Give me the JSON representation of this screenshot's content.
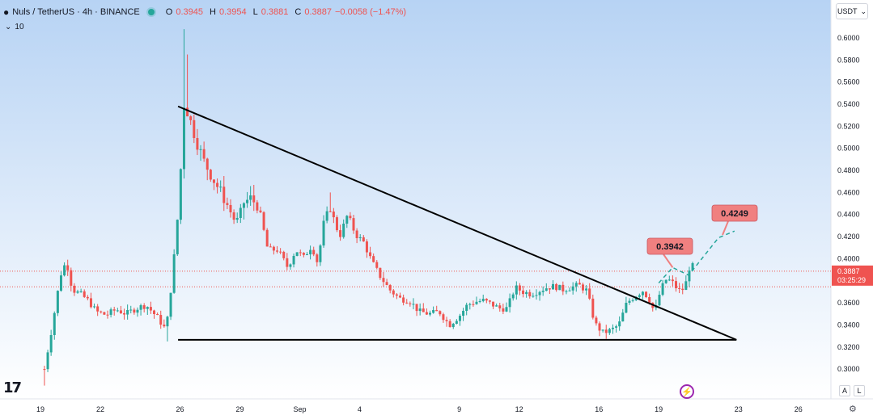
{
  "header": {
    "symbol": "Nuls / TetherUS · 4h · BINANCE",
    "o_key": "O",
    "o_val": "0.3945",
    "h_key": "H",
    "h_val": "0.3954",
    "l_key": "L",
    "l_val": "0.3881",
    "c_key": "C",
    "c_val": "0.3887",
    "change": "−0.0058 (−1.47%)"
  },
  "volume_indicator": {
    "chevron": "⌄",
    "value": "10"
  },
  "currency_select": {
    "value": "USDT",
    "chevron": "⌄"
  },
  "branding": {
    "logo_text": "17"
  },
  "corner_buttons": {
    "auto": "A",
    "log": "L"
  },
  "colors": {
    "up": "#26a69a",
    "down": "#ef5350",
    "trendline": "#000000",
    "forecast": "#26a69a",
    "label_bg": "#f08080",
    "background_top": "#b7d3f4",
    "background_bottom": "#ffffff"
  },
  "chart_data": {
    "type": "candlestick",
    "interval": "4h",
    "y_axis": {
      "range": [
        0.285,
        0.618
      ],
      "ticks": [
        "0.6000",
        "0.5800",
        "0.5600",
        "0.5400",
        "0.5200",
        "0.5000",
        "0.4800",
        "0.4600",
        "0.4400",
        "0.4200",
        "0.4000",
        "0.3800",
        "0.3600",
        "0.3400",
        "0.3200",
        "0.3000"
      ]
    },
    "x_axis": {
      "ticks": [
        {
          "label": "19",
          "day": 19
        },
        {
          "label": "22",
          "day": 22
        },
        {
          "label": "26",
          "day": 26
        },
        {
          "label": "29",
          "day": 29
        },
        {
          "label": "Sep",
          "day": 32
        },
        {
          "label": "4",
          "day": 35
        },
        {
          "label": "9",
          "day": 40
        },
        {
          "label": "12",
          "day": 43
        },
        {
          "label": "16",
          "day": 47
        },
        {
          "label": "19",
          "day": 50
        },
        {
          "label": "23",
          "day": 54
        },
        {
          "label": "26",
          "day": 57
        }
      ]
    },
    "current_price": {
      "value": 0.3887,
      "label": "0.3887",
      "countdown": "03:25:29"
    },
    "reference_line": 0.3745,
    "annotations": [
      {
        "label": "0.3942",
        "value": 0.3942
      },
      {
        "label": "0.4249",
        "value": 0.4249
      }
    ],
    "trendlines": [
      {
        "name": "descending-resistance",
        "from": {
          "day": 25.9,
          "price": 0.538
        },
        "to": {
          "day": 53.9,
          "price": 0.3265
        }
      },
      {
        "name": "horizontal-support",
        "from": {
          "day": 25.9,
          "price": 0.3265
        },
        "to": {
          "day": 53.9,
          "price": 0.3265
        }
      }
    ],
    "forecast_path": [
      {
        "day": 50.0,
        "price": 0.378
      },
      {
        "day": 50.7,
        "price": 0.392
      },
      {
        "day": 51.5,
        "price": 0.385
      },
      {
        "day": 53.0,
        "price": 0.419
      },
      {
        "day": 53.8,
        "price": 0.425
      }
    ],
    "candle_anchors": [
      [
        19.2,
        0.3
      ],
      [
        19.6,
        0.34
      ],
      [
        20.0,
        0.385
      ],
      [
        20.3,
        0.398
      ],
      [
        20.6,
        0.372
      ],
      [
        21.0,
        0.368
      ],
      [
        21.4,
        0.362
      ],
      [
        21.8,
        0.352
      ],
      [
        22.3,
        0.349
      ],
      [
        22.8,
        0.354
      ],
      [
        23.3,
        0.35
      ],
      [
        23.8,
        0.355
      ],
      [
        24.3,
        0.358
      ],
      [
        24.9,
        0.346
      ],
      [
        25.3,
        0.335
      ],
      [
        25.6,
        0.382
      ],
      [
        25.95,
        0.452
      ],
      [
        26.2,
        0.54
      ],
      [
        26.4,
        0.532
      ],
      [
        26.8,
        0.508
      ],
      [
        27.2,
        0.488
      ],
      [
        27.7,
        0.471
      ],
      [
        28.2,
        0.455
      ],
      [
        28.8,
        0.432
      ],
      [
        29.2,
        0.451
      ],
      [
        29.6,
        0.455
      ],
      [
        30.0,
        0.442
      ],
      [
        30.4,
        0.408
      ],
      [
        30.9,
        0.408
      ],
      [
        31.4,
        0.392
      ],
      [
        31.8,
        0.408
      ],
      [
        32.2,
        0.401
      ],
      [
        32.6,
        0.412
      ],
      [
        32.9,
        0.396
      ],
      [
        33.2,
        0.432
      ],
      [
        33.5,
        0.447
      ],
      [
        34.0,
        0.42
      ],
      [
        34.4,
        0.44
      ],
      [
        34.8,
        0.422
      ],
      [
        35.2,
        0.415
      ],
      [
        35.6,
        0.398
      ],
      [
        36.0,
        0.385
      ],
      [
        36.5,
        0.372
      ],
      [
        37.0,
        0.364
      ],
      [
        37.5,
        0.362
      ],
      [
        38.0,
        0.352
      ],
      [
        38.5,
        0.35
      ],
      [
        39.0,
        0.352
      ],
      [
        39.5,
        0.34
      ],
      [
        40.0,
        0.348
      ],
      [
        40.4,
        0.358
      ],
      [
        40.8,
        0.361
      ],
      [
        41.2,
        0.362
      ],
      [
        41.6,
        0.359
      ],
      [
        42.0,
        0.355
      ],
      [
        42.4,
        0.355
      ],
      [
        42.8,
        0.374
      ],
      [
        43.2,
        0.37
      ],
      [
        43.6,
        0.368
      ],
      [
        44.0,
        0.371
      ],
      [
        44.4,
        0.374
      ],
      [
        44.8,
        0.375
      ],
      [
        45.2,
        0.372
      ],
      [
        45.6,
        0.374
      ],
      [
        46.0,
        0.376
      ],
      [
        46.4,
        0.371
      ],
      [
        46.8,
        0.341
      ],
      [
        47.2,
        0.333
      ],
      [
        47.6,
        0.335
      ],
      [
        48.0,
        0.34
      ],
      [
        48.4,
        0.36
      ],
      [
        48.8,
        0.366
      ],
      [
        49.2,
        0.371
      ],
      [
        49.5,
        0.364
      ],
      [
        49.8,
        0.351
      ],
      [
        50.1,
        0.372
      ],
      [
        50.4,
        0.382
      ],
      [
        50.7,
        0.378
      ],
      [
        51.0,
        0.371
      ],
      [
        51.3,
        0.373
      ],
      [
        51.6,
        0.397
      ],
      [
        51.8,
        0.389
      ]
    ]
  }
}
